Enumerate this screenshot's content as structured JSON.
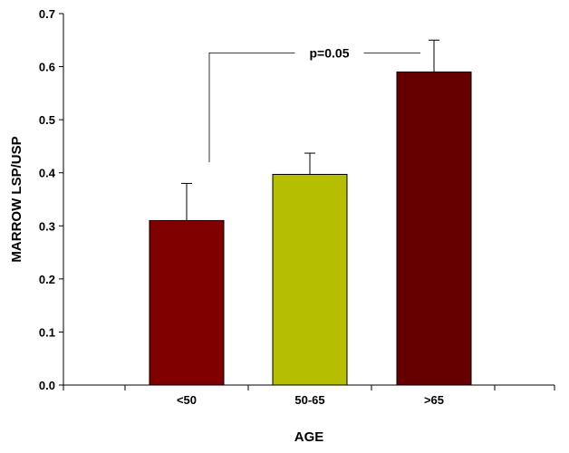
{
  "chart_data": {
    "type": "bar",
    "title": "",
    "xlabel": "AGE",
    "ylabel": "MARROW LSP/USP",
    "ylim": [
      0,
      0.7
    ],
    "yticks": [
      0.0,
      0.1,
      0.2,
      0.3,
      0.4,
      0.5,
      0.6,
      0.7
    ],
    "ytick_labels": [
      "0.0",
      "0.1",
      "0.2",
      "0.3",
      "0.4",
      "0.5",
      "0.6",
      "0.7"
    ],
    "categories": [
      "<50",
      "50-65",
      ">65"
    ],
    "values": [
      0.31,
      0.397,
      0.59
    ],
    "error_upper": [
      0.38,
      0.437,
      0.65
    ],
    "colors": [
      "#800000",
      "#b5bf00",
      "#660000"
    ],
    "grid": false,
    "annotation": {
      "text": "p=0.05",
      "from_category": "<50",
      "to_category": ">65",
      "y": 0.626,
      "drop_to": 0.42
    }
  }
}
